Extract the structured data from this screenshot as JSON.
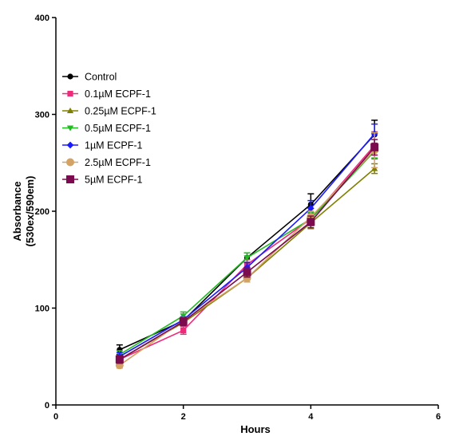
{
  "chart_data": {
    "type": "line",
    "title": "",
    "xlabel": "Hours",
    "ylabel_lines": [
      "Absorbance",
      "(530ex/590em)"
    ],
    "xlim": [
      0,
      6
    ],
    "ylim": [
      0,
      400
    ],
    "x_ticks": [
      0,
      2,
      4,
      6
    ],
    "y_ticks": [
      0,
      100,
      200,
      300,
      400
    ],
    "grid": false,
    "legend_position": "upper-left",
    "x": [
      1,
      2,
      3,
      4,
      5
    ],
    "series": [
      {
        "name": "Control",
        "color": "#000000",
        "marker": "circle",
        "values": [
          57,
          87,
          152,
          207,
          279
        ],
        "errors": [
          5,
          3,
          5,
          11,
          15
        ]
      },
      {
        "name": "0.1µM ECPF-1",
        "color": "#ee2a7b",
        "marker": "square",
        "values": [
          47,
          77,
          145,
          192,
          268
        ],
        "errors": [
          4,
          4,
          5,
          6,
          14
        ]
      },
      {
        "name": "0.25µM ECPF-1",
        "color": "#808000",
        "marker": "triangle-up",
        "values": [
          47,
          85,
          131,
          188,
          244
        ],
        "errors": [
          4,
          3,
          4,
          6,
          5
        ]
      },
      {
        "name": "0.5µM ECPF-1",
        "color": "#22bb22",
        "marker": "triangle-down",
        "values": [
          52,
          92,
          152,
          192,
          262
        ],
        "errors": [
          4,
          4,
          5,
          7,
          7
        ]
      },
      {
        "name": "1µM ECPF-1",
        "color": "#1a1aff",
        "marker": "diamond",
        "values": [
          50,
          88,
          142,
          203,
          280
        ],
        "errors": [
          4,
          3,
          5,
          8,
          10
        ]
      },
      {
        "name": "2.5µM ECPF-1",
        "color": "#d4a263",
        "marker": "circle",
        "values": [
          41,
          87,
          131,
          194,
          263
        ],
        "errors": [
          3,
          3,
          4,
          6,
          18
        ]
      },
      {
        "name": "5µM ECPF-1",
        "color": "#7b0b4e",
        "marker": "square",
        "values": [
          47,
          86,
          137,
          189,
          266
        ],
        "errors": [
          4,
          4,
          5,
          6,
          8
        ]
      }
    ]
  }
}
